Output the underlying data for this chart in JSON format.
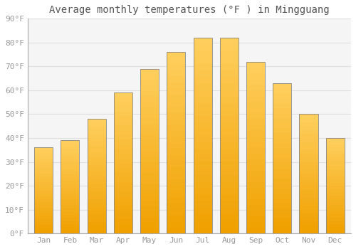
{
  "title": "Average monthly temperatures (°F ) in Mingguang",
  "months": [
    "Jan",
    "Feb",
    "Mar",
    "Apr",
    "May",
    "Jun",
    "Jul",
    "Aug",
    "Sep",
    "Oct",
    "Nov",
    "Dec"
  ],
  "values": [
    36,
    39,
    48,
    59,
    69,
    76,
    82,
    82,
    72,
    63,
    50,
    40
  ],
  "bar_color_dark": "#F0A000",
  "bar_color_light": "#FFD060",
  "bar_edge_color": "#888888",
  "ylim": [
    0,
    90
  ],
  "yticks": [
    0,
    10,
    20,
    30,
    40,
    50,
    60,
    70,
    80,
    90
  ],
  "ytick_labels": [
    "0°F",
    "10°F",
    "20°F",
    "30°F",
    "40°F",
    "50°F",
    "60°F",
    "70°F",
    "80°F",
    "90°F"
  ],
  "background_color": "#FFFFFF",
  "plot_bg_color": "#F5F5F5",
  "grid_color": "#E0E0E0",
  "title_fontsize": 10,
  "tick_fontsize": 8,
  "tick_color": "#999999",
  "font_family": "monospace",
  "bar_width": 0.7
}
